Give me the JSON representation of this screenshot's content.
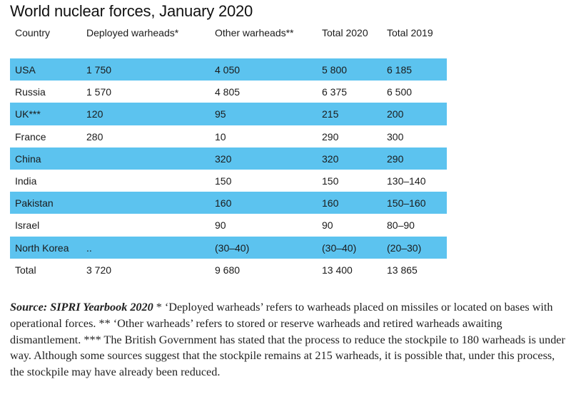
{
  "chart_data": {
    "type": "table",
    "title": "World nuclear forces, January 2020",
    "columns": [
      "Country",
      "Deployed warheads*",
      "Other warheads**",
      "Total 2020",
      "Total 2019"
    ],
    "rows": [
      [
        "USA",
        "1 750",
        "4 050",
        "5 800",
        "6 185"
      ],
      [
        "Russia",
        "1 570",
        "4 805",
        "6 375",
        "6 500"
      ],
      [
        "UK***",
        "120",
        "95",
        "215",
        "200"
      ],
      [
        "France",
        "280",
        "10",
        "290",
        "300"
      ],
      [
        "China",
        "",
        "320",
        "320",
        "290"
      ],
      [
        "India",
        "",
        "150",
        "150",
        "130–140"
      ],
      [
        "Pakistan",
        "",
        "160",
        "160",
        "150–160"
      ],
      [
        "Israel",
        "",
        "90",
        "90",
        "80–90"
      ],
      [
        "North Korea",
        "..",
        "(30–40)",
        "(30–40)",
        "(20–30)"
      ]
    ],
    "total": [
      "Total",
      "3 720",
      "9 680",
      "13 400",
      "13 865"
    ],
    "stripe_color": "#5cc3ef"
  },
  "note": {
    "source": "Source: SIPRI Yearbook 2020",
    "text": " * ‘Deployed warheads’ refers to warheads placed on missiles or located on bases with operational forces. ** ‘Other warheads’ refers to stored or reserve warheads and retired warheads awaiting dismantlement. *** The British Government has stated that the process to reduce the stockpile to 180 warheads is under way. Although some sources suggest that the stockpile remains at 215 warheads, it is possible that, under this process, the stockpile may have already been reduced."
  }
}
